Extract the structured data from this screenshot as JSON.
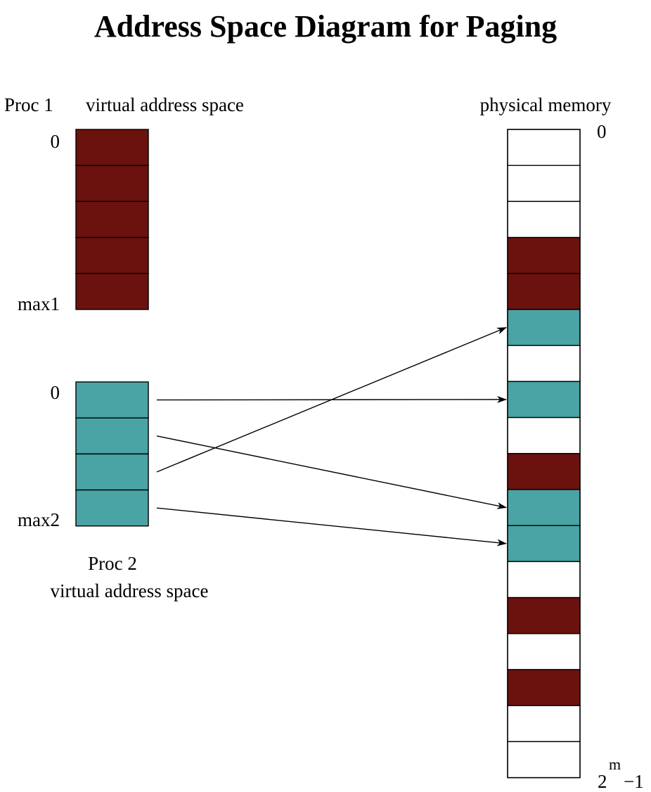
{
  "title": "Address Space Diagram for Paging",
  "colors": {
    "proc1_page": "#6b120e",
    "proc2_page": "#4aa3a5",
    "free_frame": "#ffffff",
    "stroke": "#000000"
  },
  "proc1": {
    "name": "Proc 1",
    "space_label": "virtual address space",
    "start_label": "0",
    "end_label": "max1",
    "page_count": 5
  },
  "proc2": {
    "name": "Proc 2",
    "space_label": "virtual address space",
    "start_label": "0",
    "end_label": "max2",
    "page_count": 4
  },
  "physical": {
    "label": "physical memory",
    "start_label": "0",
    "end_base": "2",
    "end_exp": "m",
    "end_rest": "−1",
    "frames": [
      "free",
      "free",
      "free",
      "proc1",
      "proc1",
      "proc2",
      "free",
      "proc2",
      "free",
      "proc1",
      "proc2",
      "proc2",
      "free",
      "proc1",
      "free",
      "proc1",
      "free",
      "free"
    ]
  },
  "mappings": [
    {
      "from_page": 0,
      "to_frame": 7
    },
    {
      "from_page": 1,
      "to_frame": 10
    },
    {
      "from_page": 2,
      "to_frame": 5
    },
    {
      "from_page": 3,
      "to_frame": 11
    }
  ]
}
